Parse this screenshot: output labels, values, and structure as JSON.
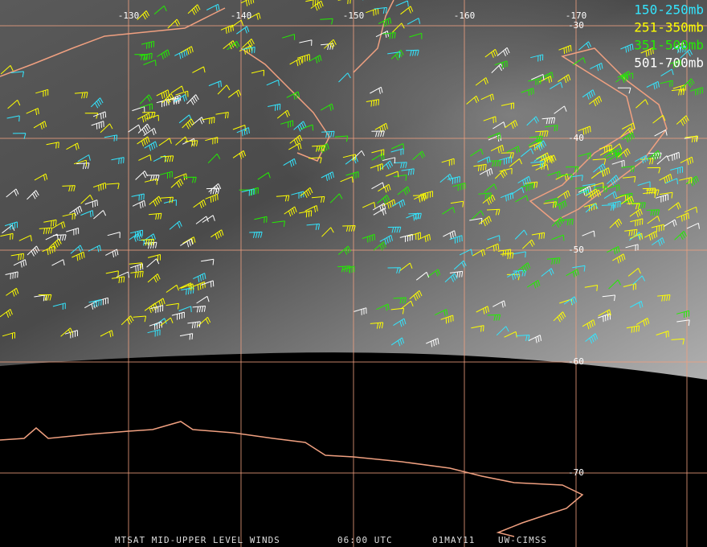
{
  "map": {
    "longitude_labels": [
      "-130",
      "-140",
      "-150",
      "-160",
      "-170"
    ],
    "latitude_labels": [
      "-30",
      "-40",
      "-50",
      "-60",
      "-70"
    ],
    "legend": [
      {
        "label": "150-250mb",
        "color": "#33e6ff"
      },
      {
        "label": "251-350mb",
        "color": "#ffff00"
      },
      {
        "label": "351-500mb",
        "color": "#22ee00"
      },
      {
        "label": "501-700mb",
        "color": "#ffffff"
      }
    ],
    "grid_color": "#f0a080",
    "coast_color": "#f0a080",
    "footer": [
      "MTSAT MID-UPPER LEVEL WINDS",
      "06:00 UTC",
      "01MAY11",
      "UW-CIMSS"
    ]
  }
}
